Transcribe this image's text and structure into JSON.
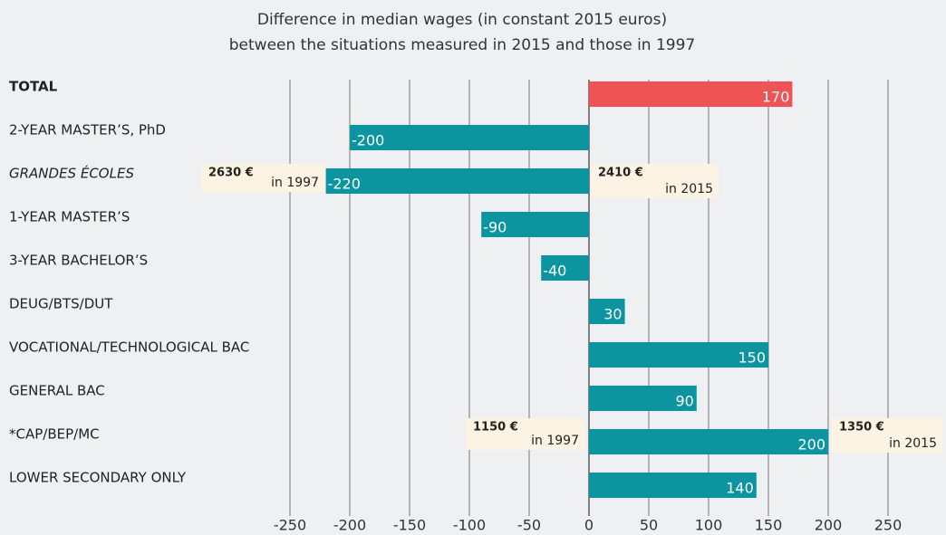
{
  "chart_data": {
    "type": "barh",
    "title": [
      "Difference in median wages (in constant 2015 euros)",
      "between the situations measured in 2015 and those in 1997"
    ],
    "categories": [
      "TOTAL",
      "2-YEAR MASTER’S, PhD",
      "GRANDES ÉCOLES",
      "1-YEAR MASTER’S",
      "3-YEAR BACHELOR’S",
      "DEUG/BTS/DUT",
      "VOCATIONAL/TECHNOLOGICAL BAC",
      "GENERAL BAC",
      "*CAP/BEP/MC",
      "LOWER SECONDARY ONLY"
    ],
    "values": [
      170,
      -200,
      -220,
      -90,
      -40,
      30,
      150,
      90,
      200,
      140
    ],
    "colors": [
      "#ef5353",
      "#0a95a0",
      "#0a95a0",
      "#0a95a0",
      "#0a95a0",
      "#0a95a0",
      "#0a95a0",
      "#0a95a0",
      "#0a95a0",
      "#0a95a0"
    ],
    "xlim": [
      -250,
      250
    ],
    "xticks": [
      -250,
      -200,
      -150,
      -100,
      -50,
      0,
      50,
      100,
      150,
      200,
      250
    ],
    "grid": true,
    "annotations": [
      {
        "amount": "2630 €",
        "note": "in 1997"
      },
      {
        "amount": "2410 €",
        "note": "in 2015"
      },
      {
        "amount": "1150 €",
        "note": "in 1997"
      },
      {
        "amount": "1350 €",
        "note": "in 2015"
      }
    ]
  }
}
